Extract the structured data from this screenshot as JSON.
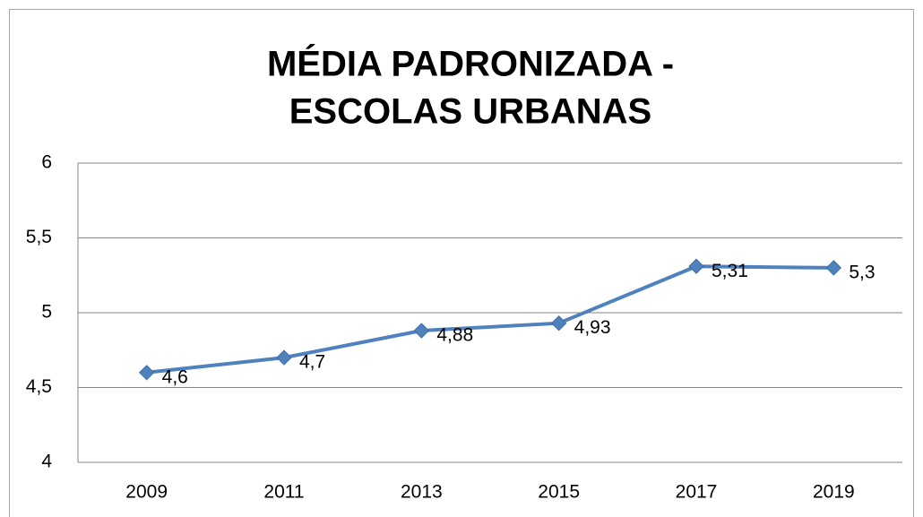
{
  "chart_data": {
    "type": "line",
    "title": [
      "MÉDIA PADRONIZADA -",
      "ESCOLAS URBANAS"
    ],
    "categories": [
      "2009",
      "2011",
      "2013",
      "2015",
      "2017",
      "2019"
    ],
    "series": [
      {
        "color": "#4f81bd",
        "values": [
          4.6,
          4.7,
          4.88,
          4.93,
          5.31,
          5.3
        ],
        "value_labels": [
          "4,6",
          "4,7",
          "4,88",
          "4,93",
          "5,31",
          "5,3"
        ]
      }
    ],
    "ylim": [
      4,
      6
    ],
    "yticks": [
      4,
      {
        "value": 4.5,
        "label": "4,5"
      },
      5,
      {
        "value": 5.5,
        "label": "5,5"
      },
      6
    ],
    "grid": true
  }
}
